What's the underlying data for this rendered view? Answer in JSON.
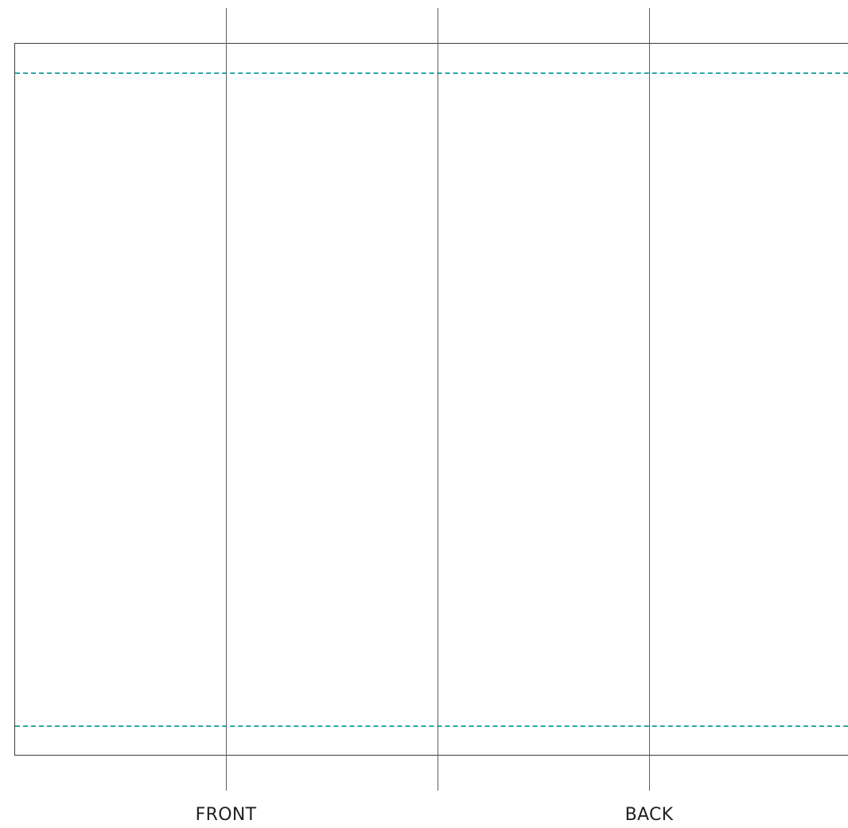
{
  "labels": {
    "front": "FRONT",
    "back": "BACK"
  },
  "colors": {
    "outline": "#3c3c3c",
    "fold_line": "#5f5f5f",
    "bleed_guide": "#2aa8a8",
    "label_text": "#222222"
  }
}
